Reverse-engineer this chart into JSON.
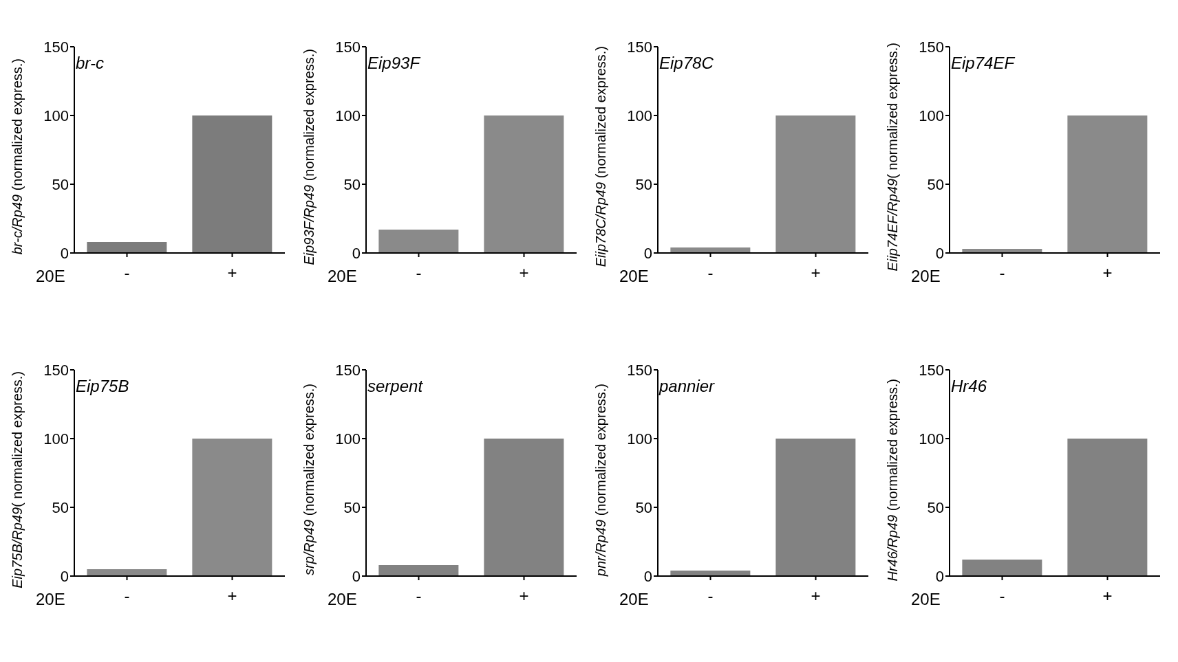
{
  "chart_data": [
    {
      "type": "bar",
      "title": "br-c",
      "xlabel": "20E",
      "ylabel": "br-c/Rp49 (normalized express.)",
      "categories": [
        "-",
        "+"
      ],
      "values": [
        8,
        100
      ],
      "color": "#7c7c7c",
      "ylim": [
        0,
        150
      ],
      "yticks": [
        0,
        50,
        100,
        150
      ]
    },
    {
      "type": "bar",
      "title": "Eip93F",
      "xlabel": "20E",
      "ylabel": "Eip93F/Rp49 (normalized express.)",
      "categories": [
        "-",
        "+"
      ],
      "values": [
        17,
        100
      ],
      "color": "#8a8a8a",
      "ylim": [
        0,
        150
      ],
      "yticks": [
        0,
        50,
        100,
        150
      ]
    },
    {
      "type": "bar",
      "title": "Eip78C",
      "xlabel": "20E",
      "ylabel": "Eiip78C/Rp49 (normalized express.)",
      "categories": [
        "-",
        "+"
      ],
      "values": [
        4,
        100
      ],
      "color": "#8a8a8a",
      "ylim": [
        0,
        150
      ],
      "yticks": [
        0,
        50,
        100,
        150
      ]
    },
    {
      "type": "bar",
      "title": "Eip74EF",
      "xlabel": "20E",
      "ylabel": "Eiip74EF/Rp49( normalized express.)",
      "categories": [
        "-",
        "+"
      ],
      "values": [
        3,
        100
      ],
      "color": "#8a8a8a",
      "ylim": [
        0,
        150
      ],
      "yticks": [
        0,
        50,
        100,
        150
      ]
    },
    {
      "type": "bar",
      "title": "Eip75B",
      "xlabel": "20E",
      "ylabel": "Eip75B/Rp49( normalized express.)",
      "categories": [
        "-",
        "+"
      ],
      "values": [
        5,
        100
      ],
      "color": "#8a8a8a",
      "ylim": [
        0,
        150
      ],
      "yticks": [
        0,
        50,
        100,
        150
      ]
    },
    {
      "type": "bar",
      "title": "serpent",
      "xlabel": "20E",
      "ylabel": "srp/Rp49 (normalized express.)",
      "categories": [
        "-",
        "+"
      ],
      "values": [
        8,
        100
      ],
      "color": "#828282",
      "ylim": [
        0,
        150
      ],
      "yticks": [
        0,
        50,
        100,
        150
      ]
    },
    {
      "type": "bar",
      "title": "pannier",
      "xlabel": "20E",
      "ylabel": "pnr/Rp49 (normalized express.)",
      "categories": [
        "-",
        "+"
      ],
      "values": [
        4,
        100
      ],
      "color": "#828282",
      "ylim": [
        0,
        150
      ],
      "yticks": [
        0,
        50,
        100,
        150
      ]
    },
    {
      "type": "bar",
      "title": "Hr46",
      "xlabel": "20E",
      "ylabel": "Hr46/Rp49 (normalized express.)",
      "categories": [
        "-",
        "+"
      ],
      "values": [
        12,
        100
      ],
      "color": "#828282",
      "ylim": [
        0,
        150
      ],
      "yticks": [
        0,
        50,
        100,
        150
      ]
    }
  ]
}
